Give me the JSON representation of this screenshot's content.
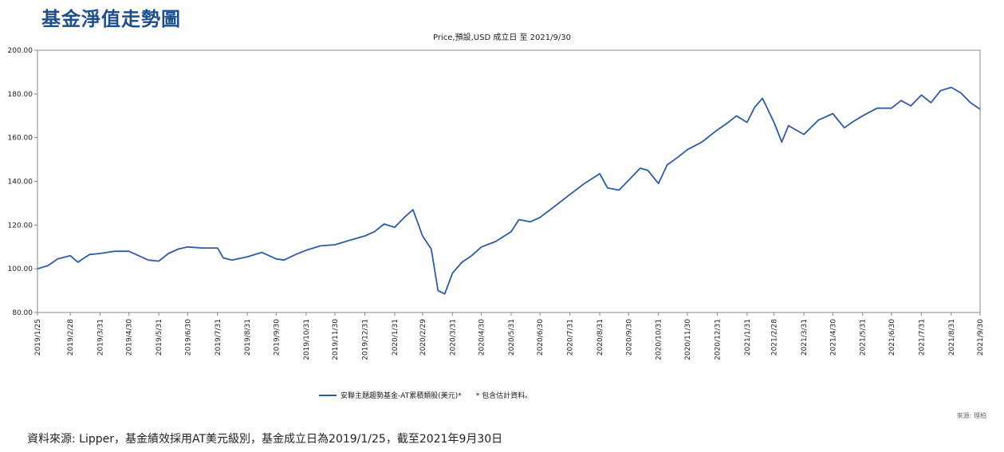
{
  "header": {
    "title": "基金淨值走勢圖",
    "subtitle": "Price,預設,USD 成立日 至 2021/9/30"
  },
  "legend": {
    "series_label": "安聯主題趨勢基金-AT累積類股(美元)*",
    "note": "* 包含估計資料。"
  },
  "source_label": "來源: 理柏",
  "footer": {
    "text": "資料來源: Lipper，基金績效採用AT美元級別，基金成立日為2019/1/25，截至2021年9月30日"
  },
  "colors": {
    "series": "#2e5aa8",
    "axis": "#888888",
    "title": "#1f4e8c"
  },
  "chart_data": {
    "type": "line",
    "title": "Price,預設,USD 成立日 至 2021/9/30",
    "ylim": [
      80,
      200
    ],
    "yticks": [
      "80.00",
      "100.00",
      "120.00",
      "140.00",
      "160.00",
      "180.00",
      "200.00"
    ],
    "xlim": [
      "2019/1/25",
      "2021/9/30"
    ],
    "xticks": [
      "2019/1/25",
      "2019/2/28",
      "2019/3/31",
      "2019/4/30",
      "2019/5/31",
      "2019/6/30",
      "2019/7/31",
      "2019/8/31",
      "2019/9/30",
      "2019/10/31",
      "2019/11/30",
      "2019/12/31",
      "2020/1/31",
      "2020/2/29",
      "2020/3/31",
      "2020/4/30",
      "2020/5/31",
      "2020/6/30",
      "2020/7/31",
      "2020/8/31",
      "2020/9/30",
      "2020/10/31",
      "2020/11/30",
      "2020/12/31",
      "2021/1/31",
      "2021/2/28",
      "2021/3/31",
      "2021/4/30",
      "2021/5/31",
      "2021/6/30",
      "2021/7/31",
      "2021/8/31",
      "2021/9/30"
    ],
    "grid": false,
    "legend_position": "bottom",
    "series": [
      {
        "name": "安聯主題趨勢基金-AT累積類股(美元)*",
        "points": [
          [
            "2019/1/25",
            100.0
          ],
          [
            "2019/2/5",
            101.5
          ],
          [
            "2019/2/15",
            104.5
          ],
          [
            "2019/2/28",
            106.0
          ],
          [
            "2019/3/8",
            103.0
          ],
          [
            "2019/3/20",
            106.5
          ],
          [
            "2019/3/31",
            107.0
          ],
          [
            "2019/4/15",
            108.0
          ],
          [
            "2019/4/30",
            108.0
          ],
          [
            "2019/5/10",
            106.0
          ],
          [
            "2019/5/20",
            104.0
          ],
          [
            "2019/5/31",
            103.5
          ],
          [
            "2019/6/10",
            107.0
          ],
          [
            "2019/6/20",
            109.0
          ],
          [
            "2019/6/30",
            110.0
          ],
          [
            "2019/7/15",
            109.5
          ],
          [
            "2019/7/31",
            109.5
          ],
          [
            "2019/8/6",
            105.0
          ],
          [
            "2019/8/15",
            104.0
          ],
          [
            "2019/8/31",
            105.5
          ],
          [
            "2019/9/15",
            107.5
          ],
          [
            "2019/9/30",
            104.5
          ],
          [
            "2019/10/8",
            104.0
          ],
          [
            "2019/10/20",
            106.5
          ],
          [
            "2019/10/31",
            108.5
          ],
          [
            "2019/11/15",
            110.5
          ],
          [
            "2019/11/30",
            111.0
          ],
          [
            "2019/12/15",
            113.0
          ],
          [
            "2019/12/31",
            115.0
          ],
          [
            "2020/1/10",
            117.0
          ],
          [
            "2020/1/20",
            120.5
          ],
          [
            "2020/1/31",
            119.0
          ],
          [
            "2020/2/10",
            123.5
          ],
          [
            "2020/2/19",
            127.0
          ],
          [
            "2020/2/29",
            115.0
          ],
          [
            "2020/3/9",
            109.0
          ],
          [
            "2020/3/16",
            90.0
          ],
          [
            "2020/3/23",
            88.5
          ],
          [
            "2020/3/31",
            98.0
          ],
          [
            "2020/4/10",
            103.0
          ],
          [
            "2020/4/20",
            106.0
          ],
          [
            "2020/4/30",
            110.0
          ],
          [
            "2020/5/15",
            112.5
          ],
          [
            "2020/5/31",
            117.0
          ],
          [
            "2020/6/8",
            122.5
          ],
          [
            "2020/6/20",
            121.5
          ],
          [
            "2020/6/30",
            123.5
          ],
          [
            "2020/7/15",
            128.5
          ],
          [
            "2020/7/31",
            134.0
          ],
          [
            "2020/8/15",
            139.0
          ],
          [
            "2020/8/31",
            143.5
          ],
          [
            "2020/9/8",
            137.0
          ],
          [
            "2020/9/20",
            136.0
          ],
          [
            "2020/9/30",
            140.5
          ],
          [
            "2020/10/12",
            146.0
          ],
          [
            "2020/10/20",
            145.0
          ],
          [
            "2020/10/31",
            139.0
          ],
          [
            "2020/11/9",
            147.5
          ],
          [
            "2020/11/20",
            151.0
          ],
          [
            "2020/11/30",
            154.5
          ],
          [
            "2020/12/15",
            158.0
          ],
          [
            "2020/12/31",
            163.5
          ],
          [
            "2021/1/10",
            166.5
          ],
          [
            "2021/1/20",
            170.0
          ],
          [
            "2021/1/31",
            167.0
          ],
          [
            "2021/2/8",
            174.0
          ],
          [
            "2021/2/16",
            178.0
          ],
          [
            "2021/2/28",
            167.0
          ],
          [
            "2021/3/8",
            158.0
          ],
          [
            "2021/3/15",
            165.5
          ],
          [
            "2021/3/31",
            161.5
          ],
          [
            "2021/4/15",
            168.0
          ],
          [
            "2021/4/30",
            171.0
          ],
          [
            "2021/5/12",
            164.5
          ],
          [
            "2021/5/20",
            167.0
          ],
          [
            "2021/5/31",
            170.0
          ],
          [
            "2021/6/15",
            173.5
          ],
          [
            "2021/6/30",
            173.5
          ],
          [
            "2021/7/10",
            177.0
          ],
          [
            "2021/7/20",
            174.5
          ],
          [
            "2021/7/31",
            179.5
          ],
          [
            "2021/8/10",
            176.0
          ],
          [
            "2021/8/20",
            181.5
          ],
          [
            "2021/8/31",
            183.0
          ],
          [
            "2021/9/10",
            180.5
          ],
          [
            "2021/9/20",
            176.0
          ],
          [
            "2021/9/30",
            173.0
          ]
        ]
      }
    ]
  }
}
